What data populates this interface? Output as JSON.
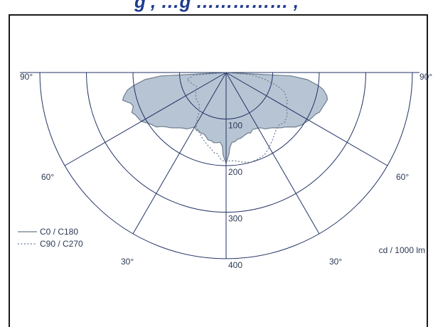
{
  "title_fragment": "g , …g …………… ,",
  "chart_data": {
    "type": "polar",
    "radial_unit": "cd / 1000 lm",
    "radial_ticks": [
      100,
      200,
      300,
      400
    ],
    "rmax": 400,
    "angle_labels": [
      "90°",
      "60°",
      "30°",
      "30°",
      "60°",
      "90°"
    ],
    "angle_ticks_deg": [
      -90,
      -60,
      -30,
      30,
      60,
      90
    ],
    "legend": [
      {
        "name": "C0 / C180",
        "style": "solid"
      },
      {
        "name": "C90 / C270",
        "style": "dotted"
      }
    ],
    "series": [
      {
        "name": "C0 / C180",
        "style": "solid",
        "fill": "#b7c4d3",
        "points": [
          [
            -90,
            0
          ],
          [
            -87,
            140
          ],
          [
            -85,
            175
          ],
          [
            -82,
            200
          ],
          [
            -80,
            215
          ],
          [
            -77,
            225
          ],
          [
            -75,
            230
          ],
          [
            -72,
            215
          ],
          [
            -70,
            212
          ],
          [
            -67,
            220
          ],
          [
            -65,
            215
          ],
          [
            -62,
            212
          ],
          [
            -60,
            210
          ],
          [
            -57,
            200
          ],
          [
            -55,
            195
          ],
          [
            -52,
            190
          ],
          [
            -50,
            180
          ],
          [
            -47,
            172
          ],
          [
            -45,
            168
          ],
          [
            -42,
            160
          ],
          [
            -40,
            155
          ],
          [
            -37,
            150
          ],
          [
            -35,
            148
          ],
          [
            -32,
            140
          ],
          [
            -30,
            135
          ],
          [
            -27,
            140
          ],
          [
            -25,
            138
          ],
          [
            -22,
            142
          ],
          [
            -20,
            140
          ],
          [
            -17,
            145
          ],
          [
            -15,
            150
          ],
          [
            -12,
            150
          ],
          [
            -10,
            153
          ],
          [
            -7,
            152
          ],
          [
            -5,
            150
          ],
          [
            -3,
            158
          ],
          [
            -2,
            178
          ],
          [
            0,
            195
          ],
          [
            2,
            175
          ],
          [
            3,
            160
          ],
          [
            5,
            150
          ],
          [
            7,
            150
          ],
          [
            10,
            145
          ],
          [
            12,
            145
          ],
          [
            15,
            142
          ],
          [
            17,
            140
          ],
          [
            20,
            138
          ],
          [
            22,
            140
          ],
          [
            25,
            135
          ],
          [
            27,
            136
          ],
          [
            30,
            138
          ],
          [
            32,
            140
          ],
          [
            35,
            148
          ],
          [
            37,
            150
          ],
          [
            40,
            155
          ],
          [
            42,
            160
          ],
          [
            45,
            168
          ],
          [
            47,
            172
          ],
          [
            50,
            182
          ],
          [
            52,
            190
          ],
          [
            55,
            197
          ],
          [
            57,
            200
          ],
          [
            60,
            205
          ],
          [
            62,
            208
          ],
          [
            65,
            212
          ],
          [
            67,
            218
          ],
          [
            70,
            220
          ],
          [
            72,
            222
          ],
          [
            75,
            225
          ],
          [
            77,
            222
          ],
          [
            80,
            212
          ],
          [
            82,
            200
          ],
          [
            85,
            175
          ],
          [
            87,
            140
          ],
          [
            90,
            0
          ]
        ]
      },
      {
        "name": "C90 / C270",
        "style": "dotted",
        "points": [
          [
            -90,
            0
          ],
          [
            -85,
            70
          ],
          [
            -80,
            85
          ],
          [
            -75,
            80
          ],
          [
            -70,
            75
          ],
          [
            -65,
            70
          ],
          [
            -60,
            75
          ],
          [
            -50,
            85
          ],
          [
            -40,
            90
          ],
          [
            -35,
            100
          ],
          [
            -30,
            130
          ],
          [
            -25,
            140
          ],
          [
            -20,
            150
          ],
          [
            -15,
            160
          ],
          [
            -12,
            165
          ],
          [
            -10,
            170
          ],
          [
            -8,
            175
          ],
          [
            -6,
            175
          ],
          [
            -4,
            185
          ],
          [
            -2,
            190
          ],
          [
            0,
            190
          ],
          [
            5,
            190
          ],
          [
            10,
            195
          ],
          [
            15,
            200
          ],
          [
            20,
            198
          ],
          [
            25,
            195
          ],
          [
            30,
            185
          ],
          [
            35,
            175
          ],
          [
            40,
            165
          ],
          [
            45,
            160
          ],
          [
            50,
            165
          ],
          [
            55,
            160
          ],
          [
            60,
            150
          ],
          [
            65,
            145
          ],
          [
            70,
            135
          ],
          [
            72,
            130
          ],
          [
            75,
            115
          ],
          [
            80,
            85
          ],
          [
            85,
            55
          ],
          [
            90,
            0
          ]
        ]
      }
    ],
    "grid": true,
    "legend_position": "bottom-left"
  }
}
